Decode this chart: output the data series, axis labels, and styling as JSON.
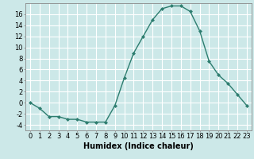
{
  "x": [
    0,
    1,
    2,
    3,
    4,
    5,
    6,
    7,
    8,
    9,
    10,
    11,
    12,
    13,
    14,
    15,
    16,
    17,
    18,
    19,
    20,
    21,
    22,
    23
  ],
  "y": [
    0,
    -1,
    -2.5,
    -2.5,
    -3,
    -3,
    -3.5,
    -3.5,
    -3.5,
    -0.5,
    4.5,
    9,
    12,
    15,
    17,
    17.5,
    17.5,
    16.5,
    13,
    7.5,
    5,
    3.5,
    1.5,
    -0.5
  ],
  "line_color": "#2d7d6f",
  "marker": "D",
  "marker_size": 2,
  "bg_color": "#cce8e8",
  "grid_color": "#ffffff",
  "xlabel": "Humidex (Indice chaleur)",
  "xlabel_fontsize": 7,
  "ylabel_ticks": [
    -4,
    -2,
    0,
    2,
    4,
    6,
    8,
    10,
    12,
    14,
    16
  ],
  "xlim": [
    -0.5,
    23.5
  ],
  "ylim": [
    -5,
    18
  ],
  "tick_fontsize": 6,
  "linewidth": 1.0
}
